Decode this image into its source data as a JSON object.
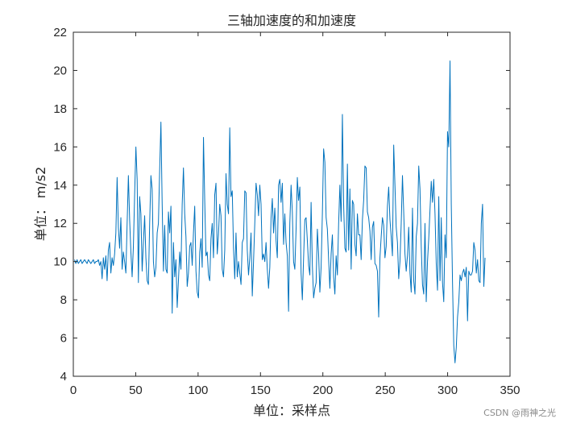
{
  "chart_data": {
    "type": "line",
    "title": "三轴加速度的和加速度",
    "xlabel": "单位：采样点",
    "ylabel": "单位： m/s2",
    "xlim": [
      0,
      350
    ],
    "ylim": [
      4,
      22
    ],
    "xticks": [
      0,
      50,
      100,
      150,
      200,
      250,
      300,
      350
    ],
    "yticks": [
      4,
      6,
      8,
      10,
      12,
      14,
      16,
      18,
      20,
      22
    ],
    "grid": false,
    "legend": "none",
    "series": [
      {
        "color": "#0072BD",
        "values": [
          10.1,
          9.9,
          10.1,
          9.9,
          10.0,
          10.1,
          9.9,
          10.0,
          10.1,
          10.0,
          9.9,
          10.1,
          10.0,
          9.9,
          10.0,
          10.1,
          9.9,
          10.0,
          10.0,
          10.1,
          9.8,
          10.0,
          9.1,
          10.2,
          9.6,
          10.3,
          9.0,
          10.6,
          11.0,
          9.4,
          10.2,
          9.8,
          10.4,
          11.5,
          14.4,
          11.8,
          10.7,
          12.3,
          9.6,
          10.5,
          10.0,
          9.4,
          12.0,
          14.5,
          12.2,
          10.5,
          9.2,
          10.8,
          13.5,
          16.0,
          14.3,
          8.9,
          13.4,
          12.5,
          9.5,
          11.0,
          12.4,
          10.2,
          9.0,
          8.8,
          12.0,
          14.5,
          13.8,
          10.0,
          9.2,
          9.7,
          11.5,
          12.0,
          14.8,
          17.3,
          13.0,
          9.5,
          11.9,
          9.6,
          9.4,
          12.6,
          11.5,
          12.9,
          7.3,
          11.0,
          9.2,
          10.1,
          7.6,
          9.0,
          10.5,
          9.6,
          13.0,
          14.9,
          12.5,
          11.3,
          8.7,
          9.4,
          10.8,
          11.0,
          9.8,
          11.5,
          12.9,
          9.5,
          8.4,
          8.1,
          10.5,
          11.2,
          9.7,
          16.5,
          13.2,
          10.3,
          10.5,
          9.3,
          9.0,
          11.2,
          12.0,
          10.2,
          13.5,
          14.1,
          10.4,
          11.4,
          13.0,
          12.4,
          9.6,
          9.2,
          10.6,
          14.6,
          13.0,
          12.5,
          17.0,
          13.4,
          13.7,
          10.7,
          9.1,
          11.5,
          9.2,
          10.0,
          9.4,
          8.8,
          11.0,
          11.2,
          13.7,
          13.6,
          10.6,
          9.3,
          10.2,
          11.5,
          8.2,
          10.0,
          12.0,
          14.1,
          13.5,
          12.4,
          14.0,
          13.0,
          10.1,
          10.4,
          10.0,
          11.0,
          9.6,
          8.6,
          9.7,
          12.3,
          13.3,
          11.5,
          12.8,
          11.1,
          10.2,
          14.0,
          14.3,
          13.1,
          14.1,
          10.9,
          12.5,
          11.0,
          10.3,
          7.4,
          12.0,
          14.0,
          12.6,
          10.0,
          9.6,
          11.7,
          14.4,
          13.2,
          13.9,
          9.4,
          8.0,
          10.2,
          12.2,
          12.3,
          11.1,
          9.8,
          9.3,
          13.1,
          9.8,
          8.1,
          8.6,
          8.9,
          11.7,
          10.4,
          8.4,
          9.7,
          12.5,
          15.9,
          15.2,
          12.3,
          11.7,
          10.1,
          8.6,
          10.4,
          11.4,
          9.2,
          8.3,
          10.3,
          9.3,
          12.0,
          14.0,
          12.1,
          17.7,
          13.0,
          10.7,
          10.5,
          15.1,
          10.6,
          13.8,
          9.6,
          13.2,
          13.0,
          10.9,
          10.3,
          12.5,
          11.4,
          11.4,
          10.1,
          12.2,
          13.2,
          15.0,
          14.9,
          12.6,
          12.3,
          11.6,
          10.1,
          11.8,
          12.1,
          9.9,
          9.8,
          9.5,
          7.1,
          10.2,
          11.3,
          12.3,
          11.9,
          10.2,
          10.8,
          12.9,
          13.9,
          12.2,
          11.3,
          10.3,
          16.1,
          14.0,
          11.8,
          11.0,
          9.1,
          10.0,
          12.0,
          14.5,
          12.6,
          10.4,
          9.5,
          10.3,
          11.8,
          9.4,
          8.4,
          12.8,
          9.0,
          8.3,
          11.3,
          12.0,
          15.0,
          13.8,
          10.8,
          8.8,
          8.3,
          12.0,
          7.9,
          10.0,
          11.2,
          12.7,
          14.2,
          13.1,
          14.3,
          12.5,
          9.9,
          8.5,
          13.4,
          9.0,
          12.3,
          8.9,
          7.9,
          11.4,
          10.2,
          16.8,
          16.0,
          20.5,
          13.0,
          8.9,
          5.6,
          4.7,
          5.5,
          7.1,
          7.9,
          9.3,
          9.0,
          9.4,
          9.6,
          9.2,
          9.7,
          6.9,
          9.5,
          9.3,
          9.3,
          9.5,
          11.0,
          10.6,
          9.4,
          10.1,
          9.0,
          8.9,
          12.0,
          13.0,
          8.7,
          10.2
        ]
      }
    ]
  },
  "watermark": "CSDN @雨神之光"
}
